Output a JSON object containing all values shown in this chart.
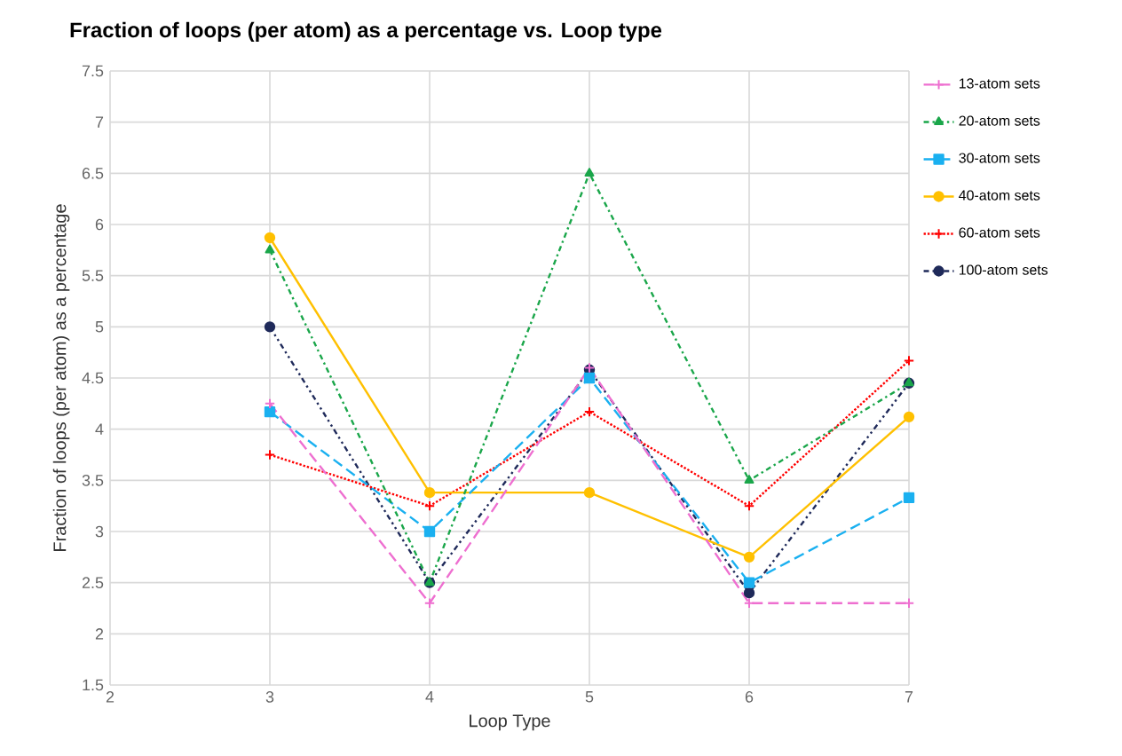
{
  "chart_data": {
    "type": "line",
    "title": "Fraction of loops (per atom) as a percentage vs. Loop type",
    "xlabel": "Loop Type",
    "ylabel": "Fraction of loops (per atom) as a percentage",
    "x": [
      3,
      4,
      5,
      6,
      7
    ],
    "series": [
      {
        "name": "13-atom sets",
        "color": "#ee6fd0",
        "marker": "cross",
        "line_style": "dashed",
        "values": [
          4.25,
          2.3,
          4.6,
          2.3,
          2.3
        ]
      },
      {
        "name": "20-atom sets",
        "color": "#1aa64a",
        "marker": "triangle",
        "line_style": "dashdot",
        "values": [
          5.75,
          2.5,
          6.5,
          3.5,
          4.45
        ]
      },
      {
        "name": "30-atom sets",
        "color": "#1ab0f0",
        "marker": "square",
        "line_style": "dashed",
        "values": [
          4.17,
          3.0,
          4.5,
          2.5,
          3.33
        ]
      },
      {
        "name": "40-atom sets",
        "color": "#ffc000",
        "marker": "circle",
        "line_style": "solid",
        "values": [
          5.87,
          3.38,
          3.38,
          2.75,
          4.12
        ]
      },
      {
        "name": "60-atom sets",
        "color": "#ff0000",
        "marker": "cross",
        "line_style": "dotted",
        "values": [
          3.75,
          3.25,
          4.17,
          3.25,
          4.67
        ]
      },
      {
        "name": "100-atom sets",
        "color": "#1f2a5a",
        "marker": "circle",
        "line_style": "dashdotdot",
        "values": [
          5.0,
          2.5,
          4.58,
          2.4,
          4.45
        ]
      }
    ],
    "xlim": [
      2,
      7
    ],
    "xticks": [
      2,
      3,
      4,
      5,
      6,
      7
    ],
    "ylim": [
      1.5,
      7.5
    ],
    "yticks": [
      1.5,
      2,
      2.5,
      3,
      3.5,
      4,
      4.5,
      5,
      5.5,
      6,
      6.5,
      7,
      7.5
    ],
    "grid": true,
    "legend": "right"
  }
}
